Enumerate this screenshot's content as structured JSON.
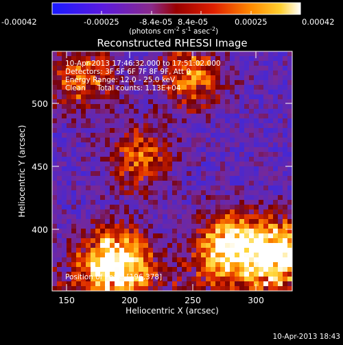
{
  "colorbar": {
    "tick_labels": [
      "-0.00042",
      "-0.00025",
      "-8.4e-05",
      "8.4e-05",
      "0.00025",
      "0.00042"
    ],
    "unit_base": "(photons cm",
    "unit_exp1": "-2",
    "unit_mid": " s",
    "unit_exp2": "-1",
    "unit_mid2": " asec",
    "unit_exp3": "-2",
    "unit_end": ")"
  },
  "plot": {
    "title": "Reconstructed RHESSI Image",
    "xlabel": "Heliocentric X (arcsec)",
    "ylabel": "Heliocentric Y (arcsec)",
    "info_lines": [
      "10-Apr-2013 17:46:32.000 to 17:51:02.000",
      "Detectors: 3F 5F 6F 7F 8F 9F, Att 0",
      "Energy Range: 12.0 - 25.0 keV",
      "Clean     Total counts: 1.13E+04"
    ],
    "peak_label": "Position of Peak: [196,378]"
  },
  "footer": {
    "timestamp": "10-Apr-2013 18:43"
  },
  "chart_data": {
    "type": "heatmap",
    "title": "Reconstructed RHESSI Image",
    "xlabel": "Heliocentric X (arcsec)",
    "ylabel": "Heliocentric Y (arcsec)",
    "xlim": [
      140,
      330
    ],
    "ylim": [
      350,
      540
    ],
    "x_ticks": [
      150,
      200,
      250,
      300
    ],
    "y_ticks": [
      400,
      450,
      500
    ],
    "colorbar_range": [
      -0.00042,
      0.00042
    ],
    "colorscale": [
      "#0000ff",
      "#6600cc",
      "#cc0000",
      "#ff6600",
      "#ffcc00",
      "#ffffff"
    ],
    "peak": [
      196,
      378
    ],
    "bright_regions": [
      {
        "x": 190,
        "y": 372,
        "level": 0.9
      },
      {
        "x": 280,
        "y": 385,
        "level": 0.75
      },
      {
        "x": 320,
        "y": 380,
        "level": 0.8
      },
      {
        "x": 165,
        "y": 520,
        "level": 0.45
      },
      {
        "x": 250,
        "y": 520,
        "level": 0.45
      },
      {
        "x": 210,
        "y": 455,
        "level": 0.4
      }
    ]
  }
}
